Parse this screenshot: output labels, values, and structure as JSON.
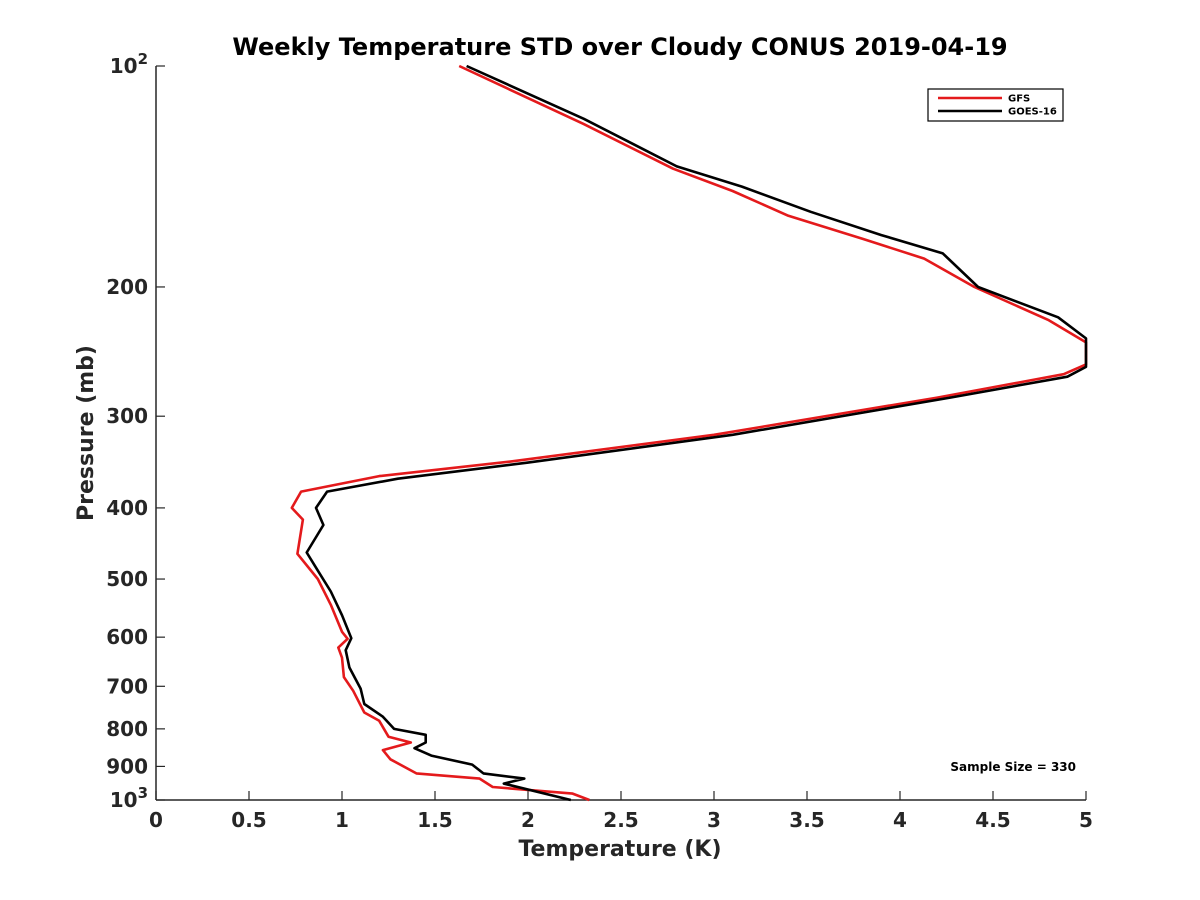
{
  "chart_data": {
    "type": "line",
    "title": "Weekly Temperature STD over Cloudy CONUS 2019-04-19",
    "xlabel": "Temperature (K)",
    "ylabel": "Pressure (mb)",
    "xlim": [
      0,
      5
    ],
    "ylim": [
      100,
      1000
    ],
    "yscale": "log",
    "y_reversed": true,
    "grid": false,
    "legend_position": "top-right",
    "x_ticks": [
      0,
      0.5,
      1,
      1.5,
      2,
      2.5,
      3,
      3.5,
      4,
      4.5,
      5
    ],
    "x_tick_labels": [
      "0",
      "0.5",
      "1",
      "1.5",
      "2",
      "2.5",
      "3",
      "3.5",
      "4",
      "4.5",
      "5"
    ],
    "y_ticks": [
      200,
      300,
      400,
      500,
      600,
      700,
      800,
      900
    ],
    "y_tick_labels": [
      "200",
      "300",
      "400",
      "500",
      "600",
      "700",
      "800",
      "900"
    ],
    "y_top_label": {
      "base": "10",
      "exp": "2",
      "value": 100
    },
    "y_bottom_label": {
      "base": "10",
      "exp": "3",
      "value": 1000
    },
    "annotation": "Sample Size = 330",
    "series": [
      {
        "name": "GFS",
        "color": "#e41a1c",
        "points": [
          {
            "t": 1.63,
            "p": 100
          },
          {
            "t": 2.3,
            "p": 120
          },
          {
            "t": 2.78,
            "p": 138
          },
          {
            "t": 3.1,
            "p": 148
          },
          {
            "t": 3.4,
            "p": 160
          },
          {
            "t": 3.8,
            "p": 172
          },
          {
            "t": 4.13,
            "p": 183
          },
          {
            "t": 4.4,
            "p": 200
          },
          {
            "t": 4.8,
            "p": 222
          },
          {
            "t": 5.0,
            "p": 238
          },
          {
            "t": 5.0,
            "p": 255
          },
          {
            "t": 4.88,
            "p": 263
          },
          {
            "t": 4.2,
            "p": 283
          },
          {
            "t": 3.0,
            "p": 318
          },
          {
            "t": 1.9,
            "p": 346
          },
          {
            "t": 1.2,
            "p": 362
          },
          {
            "t": 0.78,
            "p": 380
          },
          {
            "t": 0.73,
            "p": 400
          },
          {
            "t": 0.79,
            "p": 415
          },
          {
            "t": 0.76,
            "p": 462
          },
          {
            "t": 0.87,
            "p": 500
          },
          {
            "t": 0.94,
            "p": 542
          },
          {
            "t": 1.0,
            "p": 590
          },
          {
            "t": 1.03,
            "p": 603
          },
          {
            "t": 0.98,
            "p": 620
          },
          {
            "t": 1.0,
            "p": 640
          },
          {
            "t": 1.01,
            "p": 680
          },
          {
            "t": 1.06,
            "p": 710
          },
          {
            "t": 1.12,
            "p": 760
          },
          {
            "t": 1.2,
            "p": 780
          },
          {
            "t": 1.25,
            "p": 820
          },
          {
            "t": 1.37,
            "p": 835
          },
          {
            "t": 1.22,
            "p": 855
          },
          {
            "t": 1.26,
            "p": 880
          },
          {
            "t": 1.4,
            "p": 920
          },
          {
            "t": 1.74,
            "p": 935
          },
          {
            "t": 1.81,
            "p": 960
          },
          {
            "t": 2.24,
            "p": 980
          },
          {
            "t": 2.33,
            "p": 1000
          }
        ]
      },
      {
        "name": "GOES-16",
        "color": "#000000",
        "points": [
          {
            "t": 1.67,
            "p": 100
          },
          {
            "t": 2.3,
            "p": 118
          },
          {
            "t": 2.8,
            "p": 137
          },
          {
            "t": 3.15,
            "p": 146
          },
          {
            "t": 3.52,
            "p": 158
          },
          {
            "t": 3.9,
            "p": 170
          },
          {
            "t": 4.23,
            "p": 180
          },
          {
            "t": 4.42,
            "p": 200
          },
          {
            "t": 4.85,
            "p": 220
          },
          {
            "t": 5.0,
            "p": 235
          },
          {
            "t": 5.0,
            "p": 257
          },
          {
            "t": 4.9,
            "p": 265
          },
          {
            "t": 4.27,
            "p": 283
          },
          {
            "t": 3.1,
            "p": 318
          },
          {
            "t": 2.0,
            "p": 347
          },
          {
            "t": 1.3,
            "p": 365
          },
          {
            "t": 0.92,
            "p": 380
          },
          {
            "t": 0.86,
            "p": 400
          },
          {
            "t": 0.9,
            "p": 422
          },
          {
            "t": 0.81,
            "p": 460
          },
          {
            "t": 0.87,
            "p": 487
          },
          {
            "t": 0.94,
            "p": 520
          },
          {
            "t": 1.0,
            "p": 560
          },
          {
            "t": 1.05,
            "p": 602
          },
          {
            "t": 1.02,
            "p": 625
          },
          {
            "t": 1.04,
            "p": 660
          },
          {
            "t": 1.1,
            "p": 705
          },
          {
            "t": 1.12,
            "p": 740
          },
          {
            "t": 1.22,
            "p": 770
          },
          {
            "t": 1.28,
            "p": 800
          },
          {
            "t": 1.45,
            "p": 815
          },
          {
            "t": 1.45,
            "p": 835
          },
          {
            "t": 1.39,
            "p": 850
          },
          {
            "t": 1.48,
            "p": 870
          },
          {
            "t": 1.7,
            "p": 895
          },
          {
            "t": 1.76,
            "p": 920
          },
          {
            "t": 1.98,
            "p": 935
          },
          {
            "t": 1.87,
            "p": 950
          },
          {
            "t": 2.23,
            "p": 1000
          }
        ]
      }
    ]
  }
}
